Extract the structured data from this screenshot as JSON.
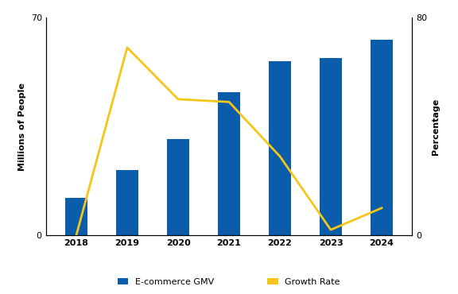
{
  "chart_data": {
    "type": "bar",
    "categories": [
      "2018",
      "2019",
      "2020",
      "2021",
      "2022",
      "2023",
      "2024"
    ],
    "y_label": "Millions of People",
    "y2_label": "Percentage",
    "ylim": [
      0,
      70
    ],
    "yticks": [
      0,
      70
    ],
    "y2lim": [
      0,
      80
    ],
    "y2ticks": [
      0,
      80
    ],
    "legend": "lower center",
    "series": [
      {
        "name": "E-commerce GMV",
        "type": "bar",
        "color": "#0b5cab",
        "values": [
          12,
          21,
          31,
          46,
          56,
          57,
          63
        ]
      },
      {
        "name": "Growth Rate",
        "type": "line",
        "axis": "y2",
        "color": "#f5c518",
        "line_style": "solid",
        "values": [
          0,
          69,
          50,
          49,
          29,
          2,
          10
        ]
      }
    ]
  }
}
